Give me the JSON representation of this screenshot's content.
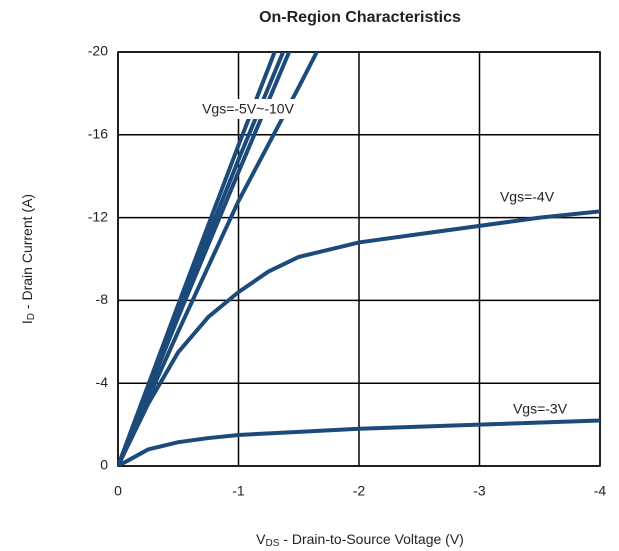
{
  "chart_data": {
    "type": "line",
    "title": "On-Region Characteristics",
    "xlabel": {
      "main": "V",
      "sub": "DS",
      "rest": " - Drain-to-Source Voltage (V)"
    },
    "ylabel": {
      "main": "I",
      "sub": "D",
      "rest": " - Drain Current (A)"
    },
    "xlim": [
      0,
      -4
    ],
    "xticks": [
      0,
      -1,
      -2,
      -3,
      -4
    ],
    "ylim": [
      0,
      -20
    ],
    "yticks": [
      0,
      -4,
      -8,
      -12,
      -16,
      -20
    ],
    "grid": true,
    "color": "#1c4a7a",
    "series": [
      {
        "name": "Vgs=-5V~-10V",
        "x": [
          0,
          -0.5,
          -1,
          -1.3
        ],
        "values": [
          0,
          -7.8,
          -15.5,
          -20
        ]
      },
      {
        "x": [
          0,
          -0.5,
          -1,
          -1.37
        ],
        "values": [
          0,
          -7.5,
          -14.8,
          -20
        ]
      },
      {
        "x": [
          0,
          -0.5,
          -1,
          -1.42
        ],
        "values": [
          0,
          -7.2,
          -14.2,
          -20
        ]
      },
      {
        "x": [
          0,
          -0.5,
          -1,
          -1.5,
          -1.65
        ],
        "values": [
          0,
          -6.5,
          -12.8,
          -18.3,
          -20
        ]
      },
      {
        "name": "Vgs=-4V",
        "x": [
          0,
          -0.25,
          -0.5,
          -0.75,
          -1,
          -1.25,
          -1.5,
          -2,
          -2.5,
          -3,
          -3.5,
          -4
        ],
        "values": [
          0,
          -3,
          -5.5,
          -7.2,
          -8.4,
          -9.4,
          -10.1,
          -10.8,
          -11.2,
          -11.6,
          -12,
          -12.3
        ]
      },
      {
        "name": "Vgs=-3V",
        "x": [
          0,
          -0.25,
          -0.5,
          -0.75,
          -1,
          -1.5,
          -2,
          -3,
          -4
        ],
        "values": [
          0,
          -0.8,
          -1.15,
          -1.35,
          -1.5,
          -1.65,
          -1.8,
          -2.0,
          -2.2
        ]
      }
    ]
  }
}
